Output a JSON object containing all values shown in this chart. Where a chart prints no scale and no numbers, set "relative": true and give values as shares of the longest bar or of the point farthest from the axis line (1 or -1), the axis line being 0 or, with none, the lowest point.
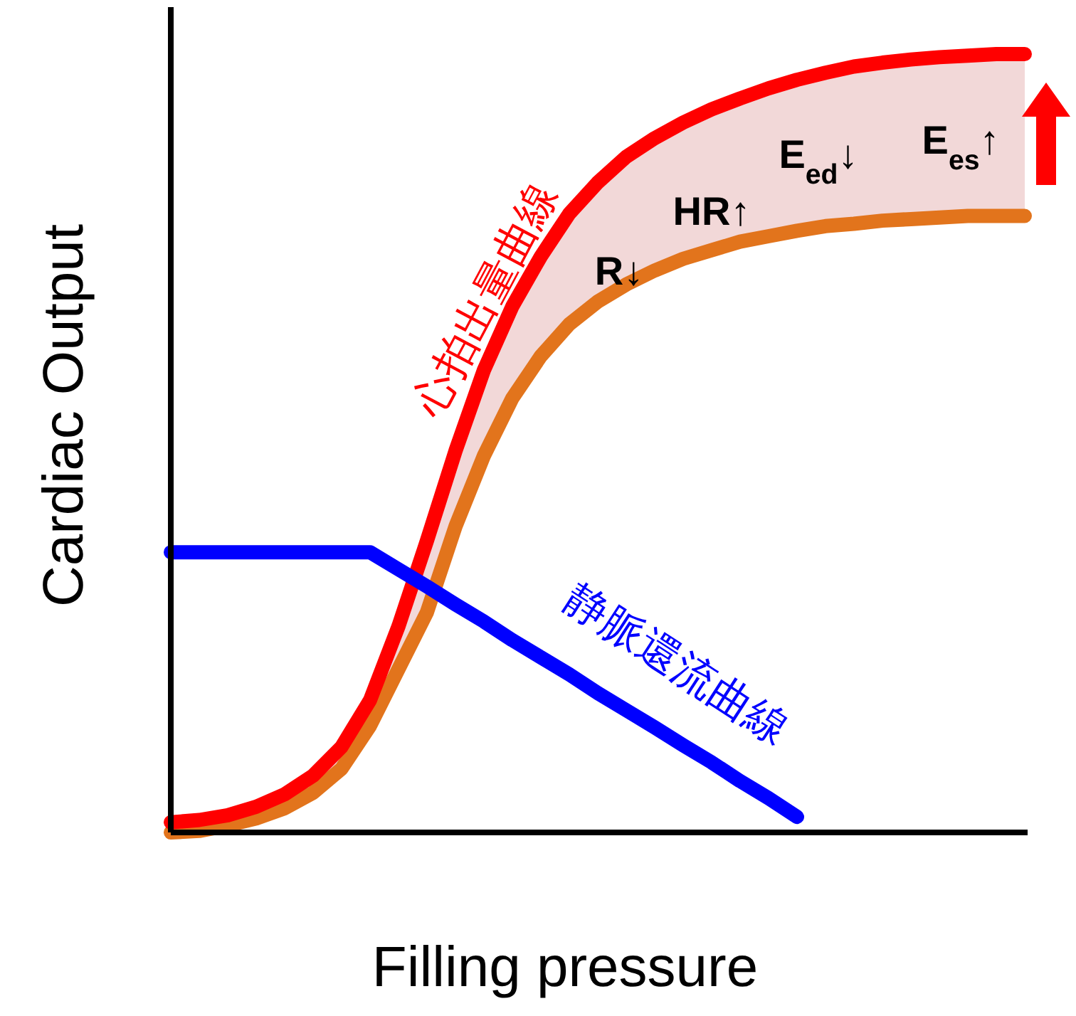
{
  "chart_data": {
    "type": "line",
    "relative": true,
    "xlabel": "Filling pressure",
    "ylabel": "Cardiac Output",
    "categories": [
      null,
      null,
      null,
      null,
      null,
      null,
      null,
      null,
      null,
      null,
      null,
      null,
      null,
      null,
      null,
      null,
      null,
      null,
      null,
      null,
      null,
      null,
      null,
      null,
      null,
      null,
      null,
      null,
      null,
      null,
      null
    ],
    "series": [
      {
        "name": "心拍出量曲線",
        "color": "#ff0000",
        "values": [
          0.013,
          0.016,
          0.022,
          0.033,
          0.049,
          0.073,
          0.11,
          0.17,
          0.265,
          0.375,
          0.49,
          0.594,
          0.676,
          0.74,
          0.795,
          0.835,
          0.868,
          0.892,
          0.912,
          0.929,
          0.943,
          0.956,
          0.967,
          0.976,
          0.984,
          0.989,
          0.993,
          0.996,
          0.998,
          1,
          1
        ],
        "lower": [
          0,
          0.002,
          0.009,
          0.018,
          0.031,
          0.051,
          0.082,
          0.137,
          0.21,
          0.283,
          0.393,
          0.484,
          0.558,
          0.612,
          0.653,
          0.682,
          0.704,
          0.722,
          0.737,
          0.748,
          0.759,
          0.766,
          0.773,
          0.779,
          0.782,
          0.786,
          0.788,
          0.79,
          0.792,
          0.792,
          0.792
        ],
        "upper": [
          0.013,
          0.016,
          0.022,
          0.033,
          0.049,
          0.073,
          0.11,
          0.17,
          0.265,
          0.375,
          0.49,
          0.594,
          0.676,
          0.74,
          0.795,
          0.835,
          0.868,
          0.892,
          0.912,
          0.929,
          0.943,
          0.956,
          0.967,
          0.976,
          0.984,
          0.989,
          0.993,
          0.996,
          0.998,
          1,
          1
        ]
      },
      {
        "color": "#e2741c",
        "values": [
          0,
          0.002,
          0.009,
          0.018,
          0.031,
          0.051,
          0.082,
          0.137,
          0.21,
          0.283,
          0.393,
          0.484,
          0.558,
          0.612,
          0.653,
          0.682,
          0.704,
          0.722,
          0.737,
          0.748,
          0.759,
          0.766,
          0.773,
          0.779,
          0.782,
          0.786,
          0.788,
          0.79,
          0.792,
          0.792,
          0.792
        ]
      },
      {
        "name": "静脈還流曲線",
        "color": "#0000ff",
        "values": [
          0.36,
          0.36,
          0.36,
          0.36,
          0.36,
          0.36,
          0.36,
          0.36,
          0.338,
          0.316,
          0.293,
          0.271,
          0.247,
          0.225,
          0.203,
          0.179,
          0.157,
          0.135,
          0.112,
          0.09,
          0.066,
          0.044,
          0.02,
          null,
          null,
          null,
          null,
          null,
          null,
          null,
          null
        ]
      }
    ],
    "annotations": [
      "R↓",
      "HR↑",
      "E$_{ed}$↓",
      "E$_{es}$↑"
    ]
  }
}
